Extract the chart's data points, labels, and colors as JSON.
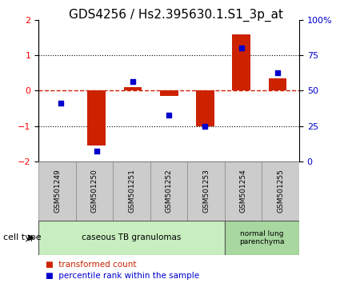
{
  "title": "GDS4256 / Hs2.395630.1.S1_3p_at",
  "samples": [
    "GSM501249",
    "GSM501250",
    "GSM501251",
    "GSM501252",
    "GSM501253",
    "GSM501254",
    "GSM501255"
  ],
  "red_bars": [
    0.0,
    -1.55,
    0.1,
    -0.15,
    -1.0,
    1.58,
    0.35
  ],
  "blue_dots": [
    -0.35,
    -1.72,
    0.25,
    -0.7,
    -1.0,
    1.2,
    0.5
  ],
  "ylim": [
    -2,
    2
  ],
  "yticks_left": [
    -2,
    -1,
    0,
    1,
    2
  ],
  "yticks_right": [
    0,
    25,
    50,
    75,
    100
  ],
  "groups": [
    {
      "label": "caseous TB granulomas",
      "n_samples": 5,
      "color": "#c8eec0"
    },
    {
      "label": "normal lung\nparenchyma",
      "n_samples": 2,
      "color": "#a8d8a0"
    }
  ],
  "cell_type_label": "cell type",
  "legend": [
    {
      "label": "transformed count",
      "color": "#cc2200"
    },
    {
      "label": "percentile rank within the sample",
      "color": "#0000cc"
    }
  ],
  "bar_color": "#cc2200",
  "dot_color": "#0000cc",
  "bar_width": 0.5,
  "zero_line_color": "#cc2200",
  "grid_color": "#000000",
  "bg_color": "#ffffff",
  "plot_bg": "#ffffff",
  "sample_bg": "#cccccc",
  "title_fontsize": 11,
  "tick_fontsize": 8,
  "label_fontsize": 8,
  "right_axis_color": "#0000cc"
}
